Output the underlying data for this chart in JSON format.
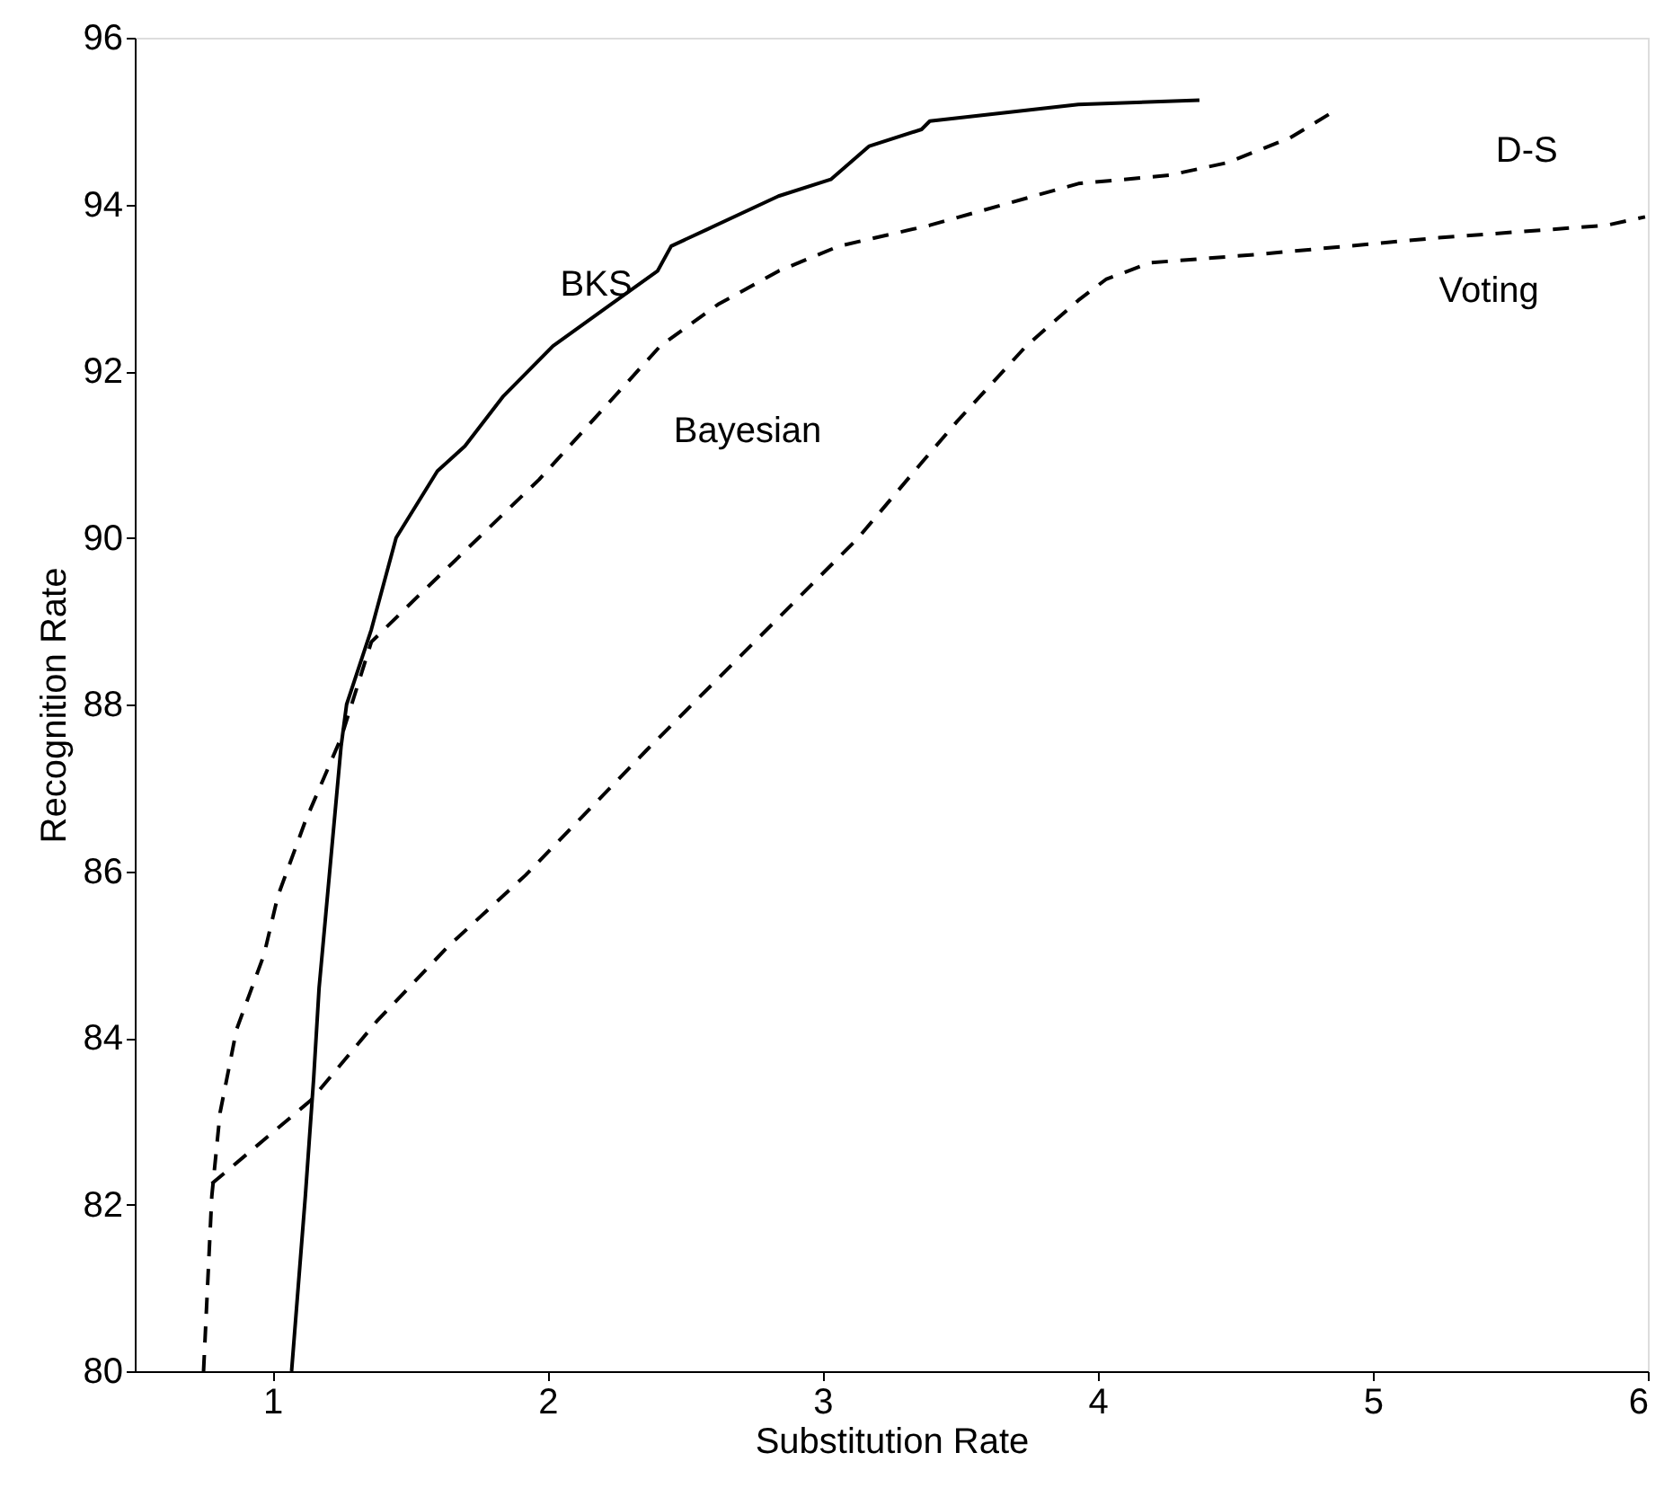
{
  "chart_data": {
    "type": "line",
    "xlabel": "Substitution Rate",
    "ylabel": "Recognition Rate",
    "xlim": [
      0.5,
      6
    ],
    "ylim": [
      80,
      96
    ],
    "xticks": [
      1,
      2,
      3,
      4,
      5,
      6
    ],
    "yticks": [
      80,
      82,
      84,
      86,
      88,
      90,
      92,
      94,
      96
    ],
    "grid": false,
    "marker": "none",
    "series": [
      {
        "color": "#000000",
        "line_style": "solid",
        "x": [
          1.07,
          1.12,
          1.15,
          1.17,
          1.25,
          1.27,
          1.36,
          1.45,
          1.6,
          1.7,
          1.84,
          2.02,
          2.23,
          2.4,
          2.45,
          2.58,
          2.84,
          3.03,
          3.17,
          3.36,
          3.39,
          3.93,
          4.37
        ],
        "values": [
          80,
          82.1,
          83.5,
          84.6,
          87.5,
          88,
          88.9,
          90,
          90.8,
          91.1,
          91.7,
          92.3,
          92.8,
          93.2,
          93.5,
          93.7,
          94.1,
          94.3,
          94.7,
          94.9,
          95,
          95.2,
          95.25
        ]
      },
      {
        "color": "#000000",
        "line_style": "dashed",
        "x": [
          0.75,
          0.78,
          0.81,
          0.87,
          0.97,
          1.02,
          1.12,
          1.25,
          1.36,
          1.53,
          1.75,
          1.97,
          2.19,
          2.41,
          2.62,
          2.84,
          3.06,
          3.39,
          3.93,
          4.26,
          4.47,
          4.7,
          4.85
        ],
        "values": [
          80,
          82.1,
          83.1,
          84.1,
          85,
          85.7,
          86.6,
          87.6,
          88.75,
          89.3,
          90,
          90.7,
          91.5,
          92.3,
          92.8,
          93.2,
          93.5,
          93.75,
          94.25,
          94.35,
          94.5,
          94.8,
          95.1
        ]
      },
      {
        "color": "#000000",
        "line_style": "dashed",
        "x": [
          0.78,
          1.14,
          1.38,
          1.64,
          1.92,
          2.36,
          3.13,
          3.36,
          3.49,
          3.74,
          3.93,
          4.03,
          4.19,
          4.58,
          5.24,
          5.85,
          5.99
        ],
        "values": [
          82.25,
          83.25,
          84.2,
          85.1,
          85.95,
          87.45,
          90,
          90.9,
          91.4,
          92.3,
          92.85,
          93.1,
          93.3,
          93.4,
          93.6,
          93.75,
          93.85
        ]
      }
    ],
    "annotations": [
      "BKS",
      "Bayesian",
      "D-S",
      "Voting"
    ]
  }
}
